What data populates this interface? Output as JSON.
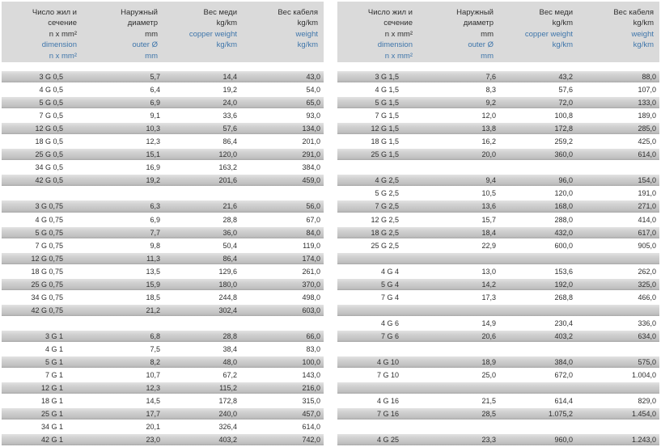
{
  "colors": {
    "header_bg": "#dadada",
    "stripe": "#c7c7c7",
    "accent_blue": "#3f76ab",
    "text": "#2f2f2f"
  },
  "header": {
    "cols": [
      {
        "black": [
          "Число жил и",
          "сечение",
          "n x mm²"
        ],
        "blue": [
          "dimension",
          "n x mm²"
        ]
      },
      {
        "black": [
          "Наружный",
          "диаметр",
          "mm"
        ],
        "blue": [
          "outer Ø",
          "mm"
        ]
      },
      {
        "black": [
          "Вес меди",
          "kg/km"
        ],
        "blue": [
          "copper weight",
          "kg/km"
        ]
      },
      {
        "black": [
          "Вес кабеля",
          "kg/km"
        ],
        "blue": [
          "weight",
          "kg/km"
        ]
      }
    ]
  },
  "tables": [
    {
      "name": "left",
      "rows": [
        [
          "3 G 0,5",
          "5,7",
          "14,4",
          "43,0"
        ],
        [
          "4 G 0,5",
          "6,4",
          "19,2",
          "54,0"
        ],
        [
          "5 G 0,5",
          "6,9",
          "24,0",
          "65,0"
        ],
        [
          "7 G 0,5",
          "9,1",
          "33,6",
          "93,0"
        ],
        [
          "12 G 0,5",
          "10,3",
          "57,6",
          "134,0"
        ],
        [
          "18 G 0,5",
          "12,3",
          "86,4",
          "201,0"
        ],
        [
          "25 G 0,5",
          "15,1",
          "120,0",
          "291,0"
        ],
        [
          "34 G 0,5",
          "16,9",
          "163,2",
          "384,0"
        ],
        [
          "42 G 0,5",
          "19,2",
          "201,6",
          "459,0"
        ],
        null,
        [
          "3 G 0,75",
          "6,3",
          "21,6",
          "56,0"
        ],
        [
          "4 G 0,75",
          "6,9",
          "28,8",
          "67,0"
        ],
        [
          "5 G 0,75",
          "7,7",
          "36,0",
          "84,0"
        ],
        [
          "7 G 0,75",
          "9,8",
          "50,4",
          "119,0"
        ],
        [
          "12 G 0,75",
          "11,3",
          "86,4",
          "174,0"
        ],
        [
          "18 G 0,75",
          "13,5",
          "129,6",
          "261,0"
        ],
        [
          "25 G 0,75",
          "15,9",
          "180,0",
          "370,0"
        ],
        [
          "34 G 0,75",
          "18,5",
          "244,8",
          "498,0"
        ],
        [
          "42 G 0,75",
          "21,2",
          "302,4",
          "603,0"
        ],
        null,
        [
          "3 G 1",
          "6,8",
          "28,8",
          "66,0"
        ],
        [
          "4 G 1",
          "7,5",
          "38,4",
          "83,0"
        ],
        [
          "5 G 1",
          "8,2",
          "48,0",
          "100,0"
        ],
        [
          "7 G 1",
          "10,7",
          "67,2",
          "143,0"
        ],
        [
          "12 G 1",
          "12,3",
          "115,2",
          "216,0"
        ],
        [
          "18 G 1",
          "14,5",
          "172,8",
          "315,0"
        ],
        [
          "25 G 1",
          "17,7",
          "240,0",
          "457,0"
        ],
        [
          "34 G 1",
          "20,1",
          "326,4",
          "614,0"
        ],
        [
          "42 G 1",
          "23,0",
          "403,2",
          "742,0"
        ]
      ]
    },
    {
      "name": "right",
      "rows": [
        [
          "3 G 1,5",
          "7,6",
          "43,2",
          "88,0"
        ],
        [
          "4 G 1,5",
          "8,3",
          "57,6",
          "107,0"
        ],
        [
          "5 G 1,5",
          "9,2",
          "72,0",
          "133,0"
        ],
        [
          "7 G 1,5",
          "12,0",
          "100,8",
          "189,0"
        ],
        [
          "12 G 1,5",
          "13,8",
          "172,8",
          "285,0"
        ],
        [
          "18 G 1,5",
          "16,2",
          "259,2",
          "425,0"
        ],
        [
          "25 G 1,5",
          "20,0",
          "360,0",
          "614,0"
        ],
        null,
        [
          "4 G 2,5",
          "9,4",
          "96,0",
          "154,0"
        ],
        [
          "5 G 2,5",
          "10,5",
          "120,0",
          "191,0"
        ],
        [
          "7 G 2,5",
          "13,6",
          "168,0",
          "271,0"
        ],
        [
          "12 G 2,5",
          "15,7",
          "288,0",
          "414,0"
        ],
        [
          "18 G 2,5",
          "18,4",
          "432,0",
          "617,0"
        ],
        [
          "25 G 2,5",
          "22,9",
          "600,0",
          "905,0"
        ],
        null,
        [
          "4 G 4",
          "13,0",
          "153,6",
          "262,0"
        ],
        [
          "5 G 4",
          "14,2",
          "192,0",
          "325,0"
        ],
        [
          "7 G 4",
          "17,3",
          "268,8",
          "466,0"
        ],
        null,
        [
          "4 G 6",
          "14,9",
          "230,4",
          "336,0"
        ],
        [
          "7 G 6",
          "20,6",
          "403,2",
          "634,0"
        ],
        null,
        [
          "4 G 10",
          "18,9",
          "384,0",
          "575,0"
        ],
        [
          "7 G 10",
          "25,0",
          "672,0",
          "1.004,0"
        ],
        null,
        [
          "4 G 16",
          "21,5",
          "614,4",
          "829,0"
        ],
        [
          "7 G 16",
          "28,5",
          "1.075,2",
          "1.454,0"
        ],
        null,
        [
          "4 G 25",
          "23,3",
          "960,0",
          "1.243,0"
        ]
      ]
    }
  ]
}
